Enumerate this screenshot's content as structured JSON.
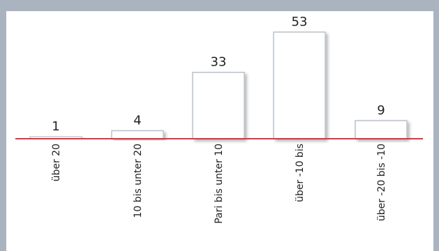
{
  "chart_data": {
    "type": "bar",
    "categories": [
      "über 20",
      "10 bis unter 20",
      "Pari bis unter 10",
      "über -10 bis",
      "über -20 bis -10"
    ],
    "values": [
      1,
      4,
      33,
      53,
      9
    ],
    "data_labels": [
      "1",
      "4",
      "33",
      "53",
      "9"
    ],
    "ylim": [
      0,
      53
    ],
    "grid": false,
    "legend": "none",
    "colors": {
      "bar_fill": "#ffffff",
      "bar_stroke": "#b8c2cc",
      "baseline": "#e8303a",
      "background": "#aab4c0"
    }
  }
}
